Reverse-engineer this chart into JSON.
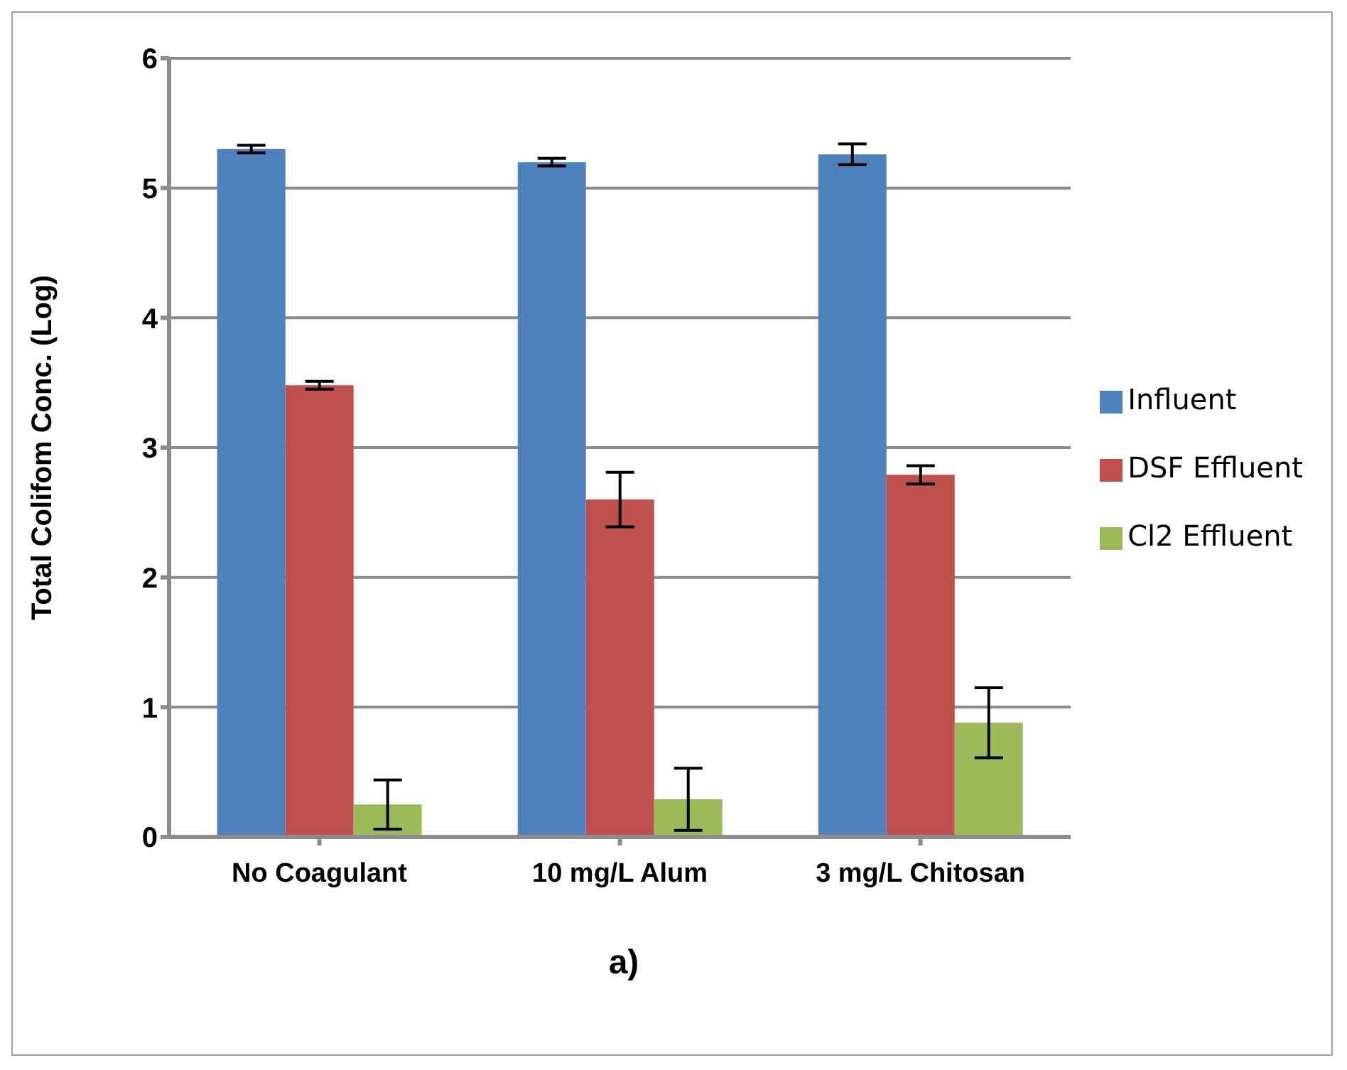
{
  "chart_data": {
    "type": "bar",
    "ylabel": "Total Colifom Conc. (Log)",
    "categories": [
      "No Coagulant",
      "10 mg/L Alum",
      "3 mg/L Chitosan"
    ],
    "series": [
      {
        "name": "Influent",
        "color": "#4f81bd",
        "values": [
          5.3,
          5.2,
          5.26
        ],
        "errors": [
          0.03,
          0.03,
          0.08
        ]
      },
      {
        "name": "DSF Effluent",
        "color": "#c0504d",
        "values": [
          3.48,
          2.6,
          2.79
        ],
        "errors": [
          0.03,
          0.21,
          0.07
        ]
      },
      {
        "name": "Cl2 Effluent",
        "color": "#9bbb59",
        "values": [
          0.25,
          0.29,
          0.88
        ],
        "errors": [
          0.19,
          0.24,
          0.27
        ]
      }
    ],
    "ylim": [
      0,
      6
    ],
    "yticks": [
      0,
      1,
      2,
      3,
      4,
      5,
      6
    ],
    "grid": "y",
    "legend": "right",
    "annotations": [
      "a)"
    ]
  }
}
